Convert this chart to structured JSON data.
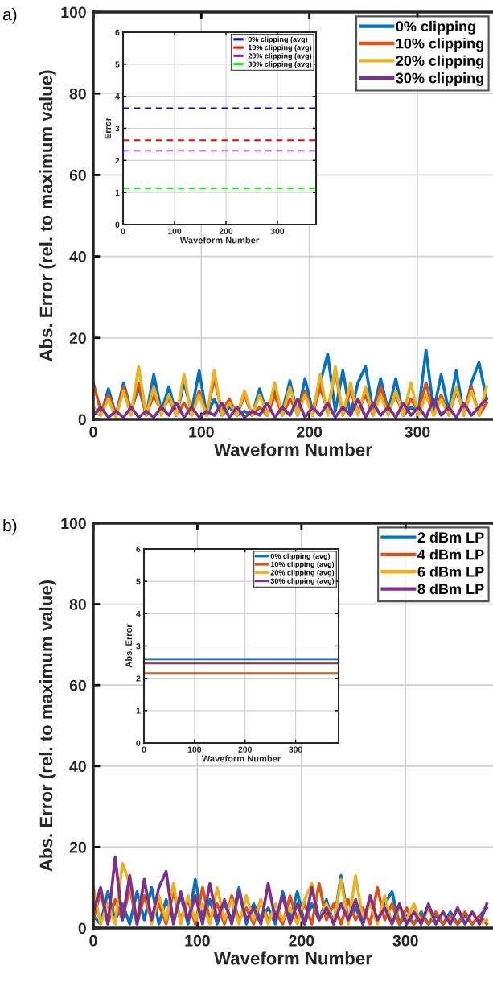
{
  "chart_data": [
    {
      "type": "line",
      "xlabel": "Waveform Number",
      "ylabel": "Abs. Error (rel. to maximum value)",
      "annotations": [
        "a)"
      ],
      "x": [
        0,
        7,
        14,
        21,
        28,
        35,
        42,
        49,
        56,
        63,
        70,
        77,
        84,
        91,
        98,
        105,
        112,
        119,
        126,
        133,
        140,
        147,
        154,
        161,
        168,
        175,
        182,
        189,
        196,
        203,
        210,
        217,
        224,
        231,
        238,
        245,
        252,
        259,
        266,
        273,
        280,
        287,
        294,
        301,
        308,
        315,
        322,
        329,
        336,
        343,
        350,
        357,
        364
      ],
      "xlim": [
        0,
        370
      ],
      "ylim": [
        0,
        100
      ],
      "xticks": [
        0,
        100,
        200,
        300
      ],
      "yticks": [
        0,
        20,
        40,
        60,
        80,
        100
      ],
      "grid": true,
      "legend": "top right",
      "line_style": "solid",
      "series": [
        {
          "name": "0% clipping",
          "color": "#0072bd",
          "values": [
            2,
            1,
            7.5,
            1,
            9,
            2,
            8,
            1,
            11,
            2,
            8,
            1,
            9,
            2,
            12,
            1,
            5,
            1,
            3,
            1,
            2,
            1,
            7.5,
            1,
            7,
            2,
            9.5,
            1,
            10,
            2,
            9,
            16,
            2,
            12,
            1,
            9,
            13,
            2,
            10,
            2,
            10,
            1,
            3,
            2,
            17,
            2,
            11,
            2,
            12,
            1,
            9,
            14,
            5
          ]
        },
        {
          "name": "10% clipping",
          "color": "#d95319",
          "values": [
            9,
            2,
            6,
            1,
            8,
            2,
            9,
            1,
            6,
            2,
            5,
            1,
            4,
            1,
            7,
            1,
            10,
            2,
            5,
            1,
            6,
            1,
            3,
            1,
            6,
            1,
            5,
            2,
            7,
            1,
            8,
            2,
            12,
            1,
            7,
            2,
            6,
            1,
            8,
            2,
            6,
            1,
            5,
            2,
            9,
            1,
            6,
            1,
            7,
            2,
            8,
            1,
            4
          ]
        },
        {
          "name": "20% clipping",
          "color": "#edb120",
          "values": [
            3,
            1,
            5,
            0.5,
            7,
            1,
            13,
            1,
            8,
            1,
            6,
            1,
            11,
            1,
            6,
            1,
            12,
            1,
            4,
            1,
            7,
            1,
            6,
            1,
            9,
            1,
            8,
            1,
            6,
            1,
            11,
            1,
            13,
            1,
            9,
            1,
            8,
            1,
            6,
            1,
            7,
            1,
            9,
            1,
            6,
            1,
            5,
            1,
            8,
            1,
            7,
            1,
            8
          ]
        },
        {
          "name": "30% clipping",
          "color": "#7e2f8e",
          "values": [
            1,
            3,
            0.5,
            2,
            0.5,
            3,
            0.5,
            2,
            0.5,
            3,
            1,
            4,
            0.5,
            3,
            0.5,
            2,
            1,
            4,
            0.5,
            3,
            0.5,
            2,
            1,
            4,
            0.5,
            3,
            1,
            5,
            0.5,
            3,
            1,
            4,
            0.5,
            3,
            1,
            5,
            0.5,
            4,
            1,
            3,
            0.5,
            4,
            1,
            3,
            0.5,
            5,
            1,
            3,
            0.5,
            4,
            1,
            3,
            5
          ]
        }
      ]
    },
    {
      "type": "line",
      "xlabel": "Waveform Number",
      "ylabel": "Error",
      "x": [
        0,
        375
      ],
      "xlim": [
        0,
        375
      ],
      "ylim": [
        0,
        6
      ],
      "xticks": [
        0,
        100,
        200,
        300
      ],
      "yticks": [
        0,
        1,
        2,
        3,
        4,
        5,
        6
      ],
      "grid": true,
      "legend": "top right",
      "line_style": "dashed",
      "series": [
        {
          "name": "0% clipping (avg)",
          "color": "#0000ff",
          "values": [
            3.63,
            3.63
          ]
        },
        {
          "name": "10% clipping (avg)",
          "color": "#ff0000",
          "values": [
            2.63,
            2.63
          ]
        },
        {
          "name": "20% clipping (avg)",
          "color": "#7e2f8e",
          "values": [
            2.3,
            2.3
          ]
        },
        {
          "name": "30% clipping (avg)",
          "color": "#00ff00",
          "values": [
            1.13,
            1.13
          ]
        }
      ]
    },
    {
      "type": "line",
      "xlabel": "Waveform Number",
      "ylabel": "Abs. Error (rel. to maximum value)",
      "annotations": [
        "b)"
      ],
      "x": [
        0,
        7,
        14,
        21,
        28,
        35,
        42,
        49,
        56,
        63,
        70,
        77,
        84,
        91,
        98,
        105,
        112,
        119,
        126,
        133,
        140,
        147,
        154,
        161,
        168,
        175,
        182,
        189,
        196,
        203,
        210,
        217,
        224,
        231,
        238,
        245,
        252,
        259,
        266,
        273,
        280,
        287,
        294,
        301,
        308,
        315,
        322,
        329,
        336,
        343,
        350,
        357,
        364,
        371,
        378
      ],
      "xlim": [
        0,
        384
      ],
      "ylim": [
        0,
        100
      ],
      "xticks": [
        0,
        100,
        200,
        300
      ],
      "yticks": [
        0,
        20,
        40,
        60,
        80,
        100
      ],
      "grid": true,
      "legend": "top right",
      "line_style": "solid",
      "series": [
        {
          "name": "2 dBm LP",
          "color": "#0072bd",
          "values": [
            3,
            1,
            9,
            2,
            6,
            1,
            9,
            2,
            10,
            1,
            7,
            2,
            8,
            1,
            12,
            2,
            7,
            1,
            6,
            2,
            10,
            1,
            6,
            2,
            5,
            1,
            9,
            2,
            9,
            1,
            6,
            2,
            7,
            1,
            13,
            2,
            5,
            1,
            7,
            2,
            6,
            9,
            1,
            3,
            1,
            4,
            1,
            3,
            1,
            4,
            1,
            3,
            1,
            3,
            5
          ]
        },
        {
          "name": "4 dBm LP",
          "color": "#d95319",
          "values": [
            2,
            9,
            1,
            7,
            2,
            10,
            1,
            8,
            2,
            6,
            1,
            9,
            2,
            7,
            1,
            10,
            2,
            6,
            1,
            8,
            2,
            5,
            1,
            7,
            2,
            4,
            1,
            8,
            2,
            6,
            1,
            11,
            2,
            6,
            1,
            7,
            2,
            5,
            1,
            10,
            2,
            6,
            1,
            5,
            1,
            3,
            1,
            4,
            1,
            3,
            1,
            4,
            1,
            3,
            1
          ]
        },
        {
          "name": "6 dBm LP",
          "color": "#edb120",
          "values": [
            10,
            1,
            6,
            1,
            16,
            11,
            2,
            12,
            1,
            8,
            2,
            11,
            1,
            8,
            2,
            6,
            1,
            10,
            2,
            7,
            1,
            8,
            2,
            7,
            1,
            6,
            2,
            5,
            1,
            7,
            11,
            2,
            6,
            1,
            12,
            1,
            13,
            2,
            6,
            1,
            8,
            1,
            5,
            2,
            6,
            1,
            5,
            1,
            4,
            1,
            5,
            1,
            4,
            1,
            2
          ]
        },
        {
          "name": "8 dBm LP",
          "color": "#7e2f8e",
          "values": [
            4,
            10,
            1,
            17.5,
            2,
            13,
            1,
            12,
            2,
            10,
            14,
            1,
            9,
            2,
            8,
            1,
            11,
            2,
            7,
            1,
            9,
            2,
            5,
            1,
            11,
            2,
            8,
            1,
            6,
            1,
            10,
            2,
            5,
            1,
            6,
            2,
            7,
            1,
            8,
            2,
            5,
            1,
            6,
            1,
            4,
            1,
            6,
            1,
            4,
            1,
            5,
            1,
            4,
            1,
            6
          ]
        }
      ]
    },
    {
      "type": "line",
      "xlabel": "Waveform Number",
      "ylabel": "Abs. Error",
      "x": [
        0,
        385
      ],
      "xlim": [
        0,
        385
      ],
      "ylim": [
        0,
        6
      ],
      "xticks": [
        0,
        100,
        200,
        300
      ],
      "yticks": [
        0,
        1,
        2,
        3,
        4,
        5,
        6
      ],
      "grid": true,
      "legend": "top right",
      "line_style": "solid",
      "series": [
        {
          "name": "0% clipping (avg)",
          "color": "#0072bd",
          "values": [
            2.58,
            2.58
          ]
        },
        {
          "name": "10% clipping (avg)",
          "color": "#d95319",
          "values": [
            2.16,
            2.16
          ]
        },
        {
          "name": "20% clipping (avg)",
          "color": "#edb120",
          "values": [
            2.48,
            2.48
          ]
        },
        {
          "name": "30% clipping (avg)",
          "color": "#7e2f8e",
          "values": [
            2.46,
            2.46
          ]
        }
      ]
    }
  ]
}
